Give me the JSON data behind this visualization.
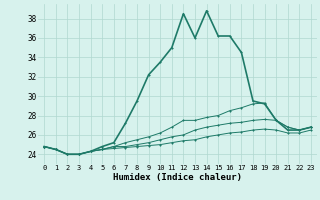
{
  "xlabel": "Humidex (Indice chaleur)",
  "background_color": "#d7f2ed",
  "grid_color": "#b0d8d0",
  "line_color": "#1e7a68",
  "xlim": [
    -0.5,
    23.5
  ],
  "ylim": [
    23.0,
    39.5
  ],
  "yticks": [
    24,
    26,
    28,
    30,
    32,
    34,
    36,
    38
  ],
  "xticks": [
    0,
    1,
    2,
    3,
    4,
    5,
    6,
    7,
    8,
    9,
    10,
    11,
    12,
    13,
    14,
    15,
    16,
    17,
    18,
    19,
    20,
    21,
    22,
    23
  ],
  "series": [
    [
      24.8,
      24.5,
      24.0,
      24.0,
      24.3,
      24.8,
      25.2,
      27.2,
      29.5,
      32.2,
      33.5,
      35.0,
      38.5,
      36.0,
      38.8,
      36.2,
      36.2,
      34.5,
      29.5,
      29.2,
      27.5,
      26.5,
      26.5,
      26.8
    ],
    [
      24.8,
      24.5,
      24.0,
      24.0,
      24.3,
      24.5,
      24.8,
      25.2,
      25.5,
      25.8,
      26.2,
      26.8,
      27.5,
      27.5,
      27.8,
      28.0,
      28.5,
      28.8,
      29.2,
      29.3,
      27.5,
      26.8,
      26.5,
      26.8
    ],
    [
      24.8,
      24.5,
      24.0,
      24.0,
      24.3,
      24.5,
      24.8,
      24.8,
      25.0,
      25.2,
      25.5,
      25.8,
      26.0,
      26.5,
      26.8,
      27.0,
      27.2,
      27.3,
      27.5,
      27.6,
      27.5,
      26.8,
      26.5,
      26.8
    ],
    [
      24.8,
      24.5,
      24.0,
      24.0,
      24.3,
      24.5,
      24.6,
      24.7,
      24.8,
      24.9,
      25.0,
      25.2,
      25.4,
      25.5,
      25.8,
      26.0,
      26.2,
      26.3,
      26.5,
      26.6,
      26.5,
      26.2,
      26.2,
      26.5
    ]
  ]
}
